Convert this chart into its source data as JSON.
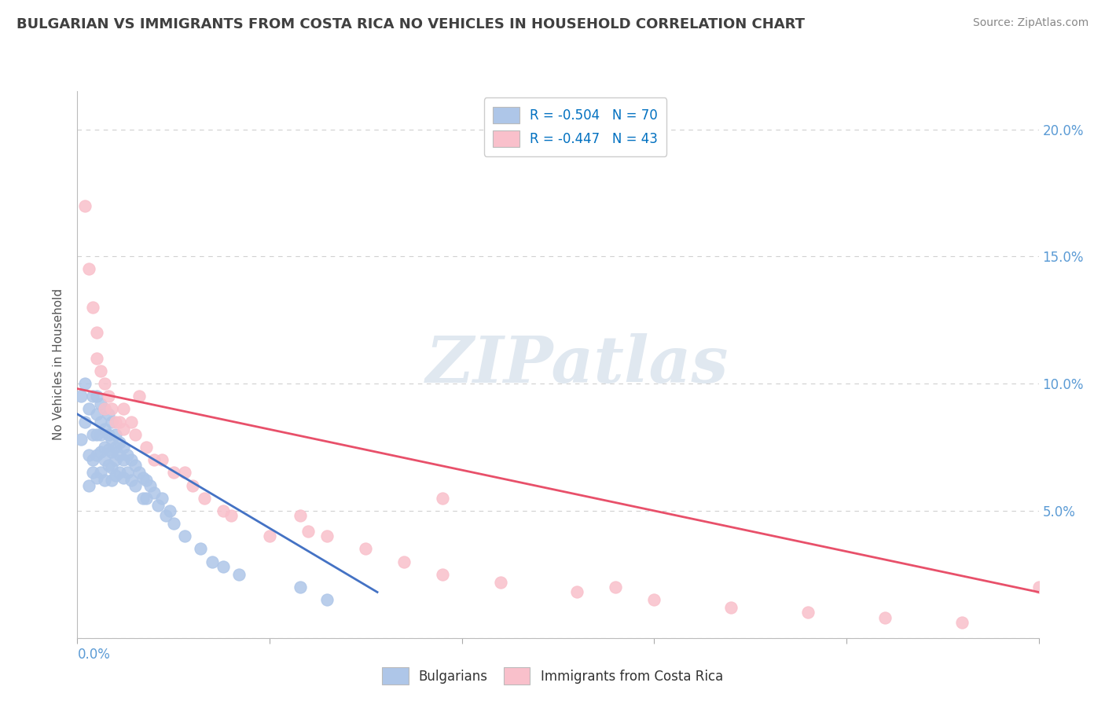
{
  "title": "BULGARIAN VS IMMIGRANTS FROM COSTA RICA NO VEHICLES IN HOUSEHOLD CORRELATION CHART",
  "source": "Source: ZipAtlas.com",
  "ylabel": "No Vehicles in Household",
  "ytick_vals": [
    0.0,
    0.05,
    0.1,
    0.15,
    0.2
  ],
  "ytick_labels": [
    "",
    "5.0%",
    "10.0%",
    "15.0%",
    "20.0%"
  ],
  "xtick_vals": [
    0.0,
    0.05,
    0.1,
    0.15,
    0.2,
    0.25
  ],
  "xlim": [
    0.0,
    0.25
  ],
  "ylim": [
    0.0,
    0.215
  ],
  "legend1_label": "R = -0.504   N = 70",
  "legend2_label": "R = -0.447   N = 43",
  "legend1_color": "#aec6e8",
  "legend2_color": "#f9c0cb",
  "line1_color": "#4472c4",
  "line2_color": "#e8506a",
  "scatter1_color": "#aec6e8",
  "scatter2_color": "#f9c0cb",
  "watermark_text": "ZIPatlas",
  "watermark_color": "#e0e8f0",
  "bg_color": "#ffffff",
  "grid_color": "#d0d0d0",
  "title_color": "#404040",
  "axis_tick_color": "#5b9bd5",
  "ylabel_color": "#555555",
  "legend_text_color": "#333333",
  "legend_value_color": "#0070c0",
  "bottom_legend_labels": [
    "Bulgarians",
    "Immigrants from Costa Rica"
  ],
  "line1_start_x": 0.0,
  "line1_start_y": 0.088,
  "line1_end_x": 0.078,
  "line1_end_y": 0.018,
  "line2_start_x": 0.0,
  "line2_start_y": 0.098,
  "line2_end_x": 0.25,
  "line2_end_y": 0.018,
  "scatter1_x": [
    0.001,
    0.001,
    0.002,
    0.002,
    0.003,
    0.003,
    0.003,
    0.004,
    0.004,
    0.004,
    0.004,
    0.005,
    0.005,
    0.005,
    0.005,
    0.005,
    0.006,
    0.006,
    0.006,
    0.006,
    0.006,
    0.007,
    0.007,
    0.007,
    0.007,
    0.007,
    0.008,
    0.008,
    0.008,
    0.008,
    0.009,
    0.009,
    0.009,
    0.009,
    0.009,
    0.01,
    0.01,
    0.01,
    0.01,
    0.011,
    0.011,
    0.011,
    0.012,
    0.012,
    0.012,
    0.013,
    0.013,
    0.014,
    0.014,
    0.015,
    0.015,
    0.016,
    0.017,
    0.017,
    0.018,
    0.018,
    0.019,
    0.02,
    0.021,
    0.022,
    0.023,
    0.024,
    0.025,
    0.028,
    0.032,
    0.035,
    0.038,
    0.042,
    0.058,
    0.065
  ],
  "scatter1_y": [
    0.078,
    0.095,
    0.085,
    0.1,
    0.09,
    0.072,
    0.06,
    0.095,
    0.08,
    0.07,
    0.065,
    0.095,
    0.088,
    0.08,
    0.072,
    0.063,
    0.092,
    0.085,
    0.08,
    0.073,
    0.065,
    0.09,
    0.082,
    0.075,
    0.07,
    0.062,
    0.088,
    0.08,
    0.074,
    0.068,
    0.085,
    0.078,
    0.073,
    0.067,
    0.062,
    0.08,
    0.075,
    0.07,
    0.064,
    0.077,
    0.072,
    0.065,
    0.075,
    0.07,
    0.063,
    0.072,
    0.065,
    0.07,
    0.062,
    0.068,
    0.06,
    0.065,
    0.063,
    0.055,
    0.062,
    0.055,
    0.06,
    0.057,
    0.052,
    0.055,
    0.048,
    0.05,
    0.045,
    0.04,
    0.035,
    0.03,
    0.028,
    0.025,
    0.02,
    0.015
  ],
  "scatter2_x": [
    0.002,
    0.003,
    0.004,
    0.005,
    0.005,
    0.006,
    0.007,
    0.007,
    0.008,
    0.009,
    0.01,
    0.011,
    0.012,
    0.014,
    0.015,
    0.016,
    0.018,
    0.02,
    0.022,
    0.025,
    0.028,
    0.03,
    0.033,
    0.038,
    0.04,
    0.05,
    0.06,
    0.065,
    0.075,
    0.085,
    0.095,
    0.11,
    0.13,
    0.15,
    0.17,
    0.19,
    0.21,
    0.23,
    0.25,
    0.058,
    0.012,
    0.095,
    0.14
  ],
  "scatter2_y": [
    0.17,
    0.145,
    0.13,
    0.12,
    0.11,
    0.105,
    0.1,
    0.09,
    0.095,
    0.09,
    0.085,
    0.085,
    0.082,
    0.085,
    0.08,
    0.095,
    0.075,
    0.07,
    0.07,
    0.065,
    0.065,
    0.06,
    0.055,
    0.05,
    0.048,
    0.04,
    0.042,
    0.04,
    0.035,
    0.03,
    0.025,
    0.022,
    0.018,
    0.015,
    0.012,
    0.01,
    0.008,
    0.006,
    0.02,
    0.048,
    0.09,
    0.055,
    0.02
  ]
}
